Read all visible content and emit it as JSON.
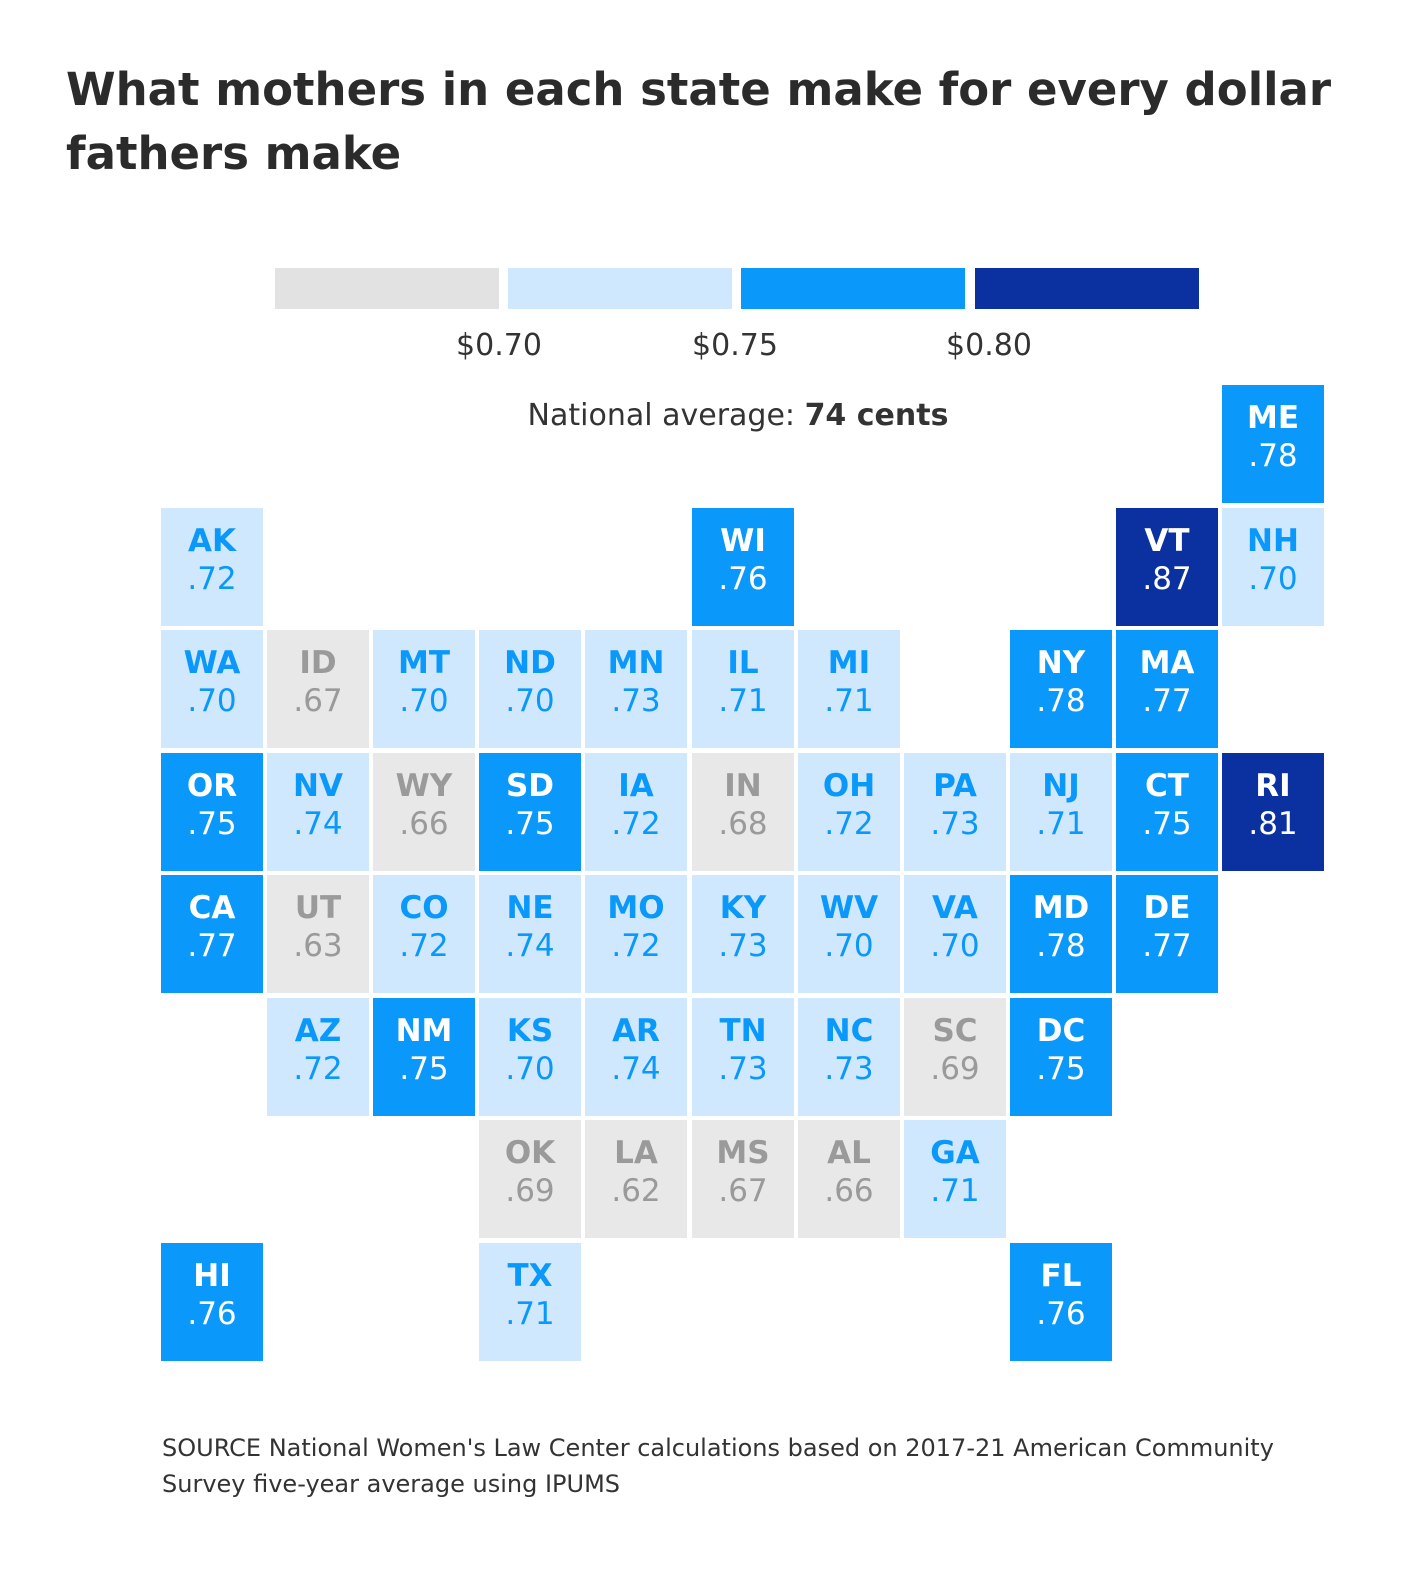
{
  "title": "What mothers in each state make for every dollar fathers make",
  "legend": {
    "colors": [
      "#e2e2e2",
      "#cfe8fd",
      "#0a98fb",
      "#0b30a0"
    ],
    "ticks": [
      "$0.70",
      "$0.75",
      "$0.80"
    ]
  },
  "national_average": {
    "label": "National average:",
    "value": "74 cents"
  },
  "colors": {
    "bin0_bg": "#e8e8e8",
    "bin0_text": "#9a9a9a",
    "bin1_bg": "#cfe8fd",
    "bin1_text": "#0a98fb",
    "bin2_bg": "#0a98fb",
    "bin2_text": "#ffffff",
    "bin3_bg": "#0b30a0",
    "bin3_text": "#ffffff"
  },
  "states": [
    {
      "abbr": "ME",
      "value": ".78",
      "row": 0,
      "col": 10,
      "bin": 2
    },
    {
      "abbr": "AK",
      "value": ".72",
      "row": 1,
      "col": 0,
      "bin": 1
    },
    {
      "abbr": "WI",
      "value": ".76",
      "row": 1,
      "col": 5,
      "bin": 2
    },
    {
      "abbr": "VT",
      "value": ".87",
      "row": 1,
      "col": 9,
      "bin": 3
    },
    {
      "abbr": "NH",
      "value": ".70",
      "row": 1,
      "col": 10,
      "bin": 1
    },
    {
      "abbr": "WA",
      "value": ".70",
      "row": 2,
      "col": 0,
      "bin": 1
    },
    {
      "abbr": "ID",
      "value": ".67",
      "row": 2,
      "col": 1,
      "bin": 0
    },
    {
      "abbr": "MT",
      "value": ".70",
      "row": 2,
      "col": 2,
      "bin": 1
    },
    {
      "abbr": "ND",
      "value": ".70",
      "row": 2,
      "col": 3,
      "bin": 1
    },
    {
      "abbr": "MN",
      "value": ".73",
      "row": 2,
      "col": 4,
      "bin": 1
    },
    {
      "abbr": "IL",
      "value": ".71",
      "row": 2,
      "col": 5,
      "bin": 1
    },
    {
      "abbr": "MI",
      "value": ".71",
      "row": 2,
      "col": 6,
      "bin": 1
    },
    {
      "abbr": "NY",
      "value": ".78",
      "row": 2,
      "col": 8,
      "bin": 2
    },
    {
      "abbr": "MA",
      "value": ".77",
      "row": 2,
      "col": 9,
      "bin": 2
    },
    {
      "abbr": "OR",
      "value": ".75",
      "row": 3,
      "col": 0,
      "bin": 2
    },
    {
      "abbr": "NV",
      "value": ".74",
      "row": 3,
      "col": 1,
      "bin": 1
    },
    {
      "abbr": "WY",
      "value": ".66",
      "row": 3,
      "col": 2,
      "bin": 0
    },
    {
      "abbr": "SD",
      "value": ".75",
      "row": 3,
      "col": 3,
      "bin": 2
    },
    {
      "abbr": "IA",
      "value": ".72",
      "row": 3,
      "col": 4,
      "bin": 1
    },
    {
      "abbr": "IN",
      "value": ".68",
      "row": 3,
      "col": 5,
      "bin": 0
    },
    {
      "abbr": "OH",
      "value": ".72",
      "row": 3,
      "col": 6,
      "bin": 1
    },
    {
      "abbr": "PA",
      "value": ".73",
      "row": 3,
      "col": 7,
      "bin": 1
    },
    {
      "abbr": "NJ",
      "value": ".71",
      "row": 3,
      "col": 8,
      "bin": 1
    },
    {
      "abbr": "CT",
      "value": ".75",
      "row": 3,
      "col": 9,
      "bin": 2
    },
    {
      "abbr": "RI",
      "value": ".81",
      "row": 3,
      "col": 10,
      "bin": 3
    },
    {
      "abbr": "CA",
      "value": ".77",
      "row": 4,
      "col": 0,
      "bin": 2
    },
    {
      "abbr": "UT",
      "value": ".63",
      "row": 4,
      "col": 1,
      "bin": 0
    },
    {
      "abbr": "CO",
      "value": ".72",
      "row": 4,
      "col": 2,
      "bin": 1
    },
    {
      "abbr": "NE",
      "value": ".74",
      "row": 4,
      "col": 3,
      "bin": 1
    },
    {
      "abbr": "MO",
      "value": ".72",
      "row": 4,
      "col": 4,
      "bin": 1
    },
    {
      "abbr": "KY",
      "value": ".73",
      "row": 4,
      "col": 5,
      "bin": 1
    },
    {
      "abbr": "WV",
      "value": ".70",
      "row": 4,
      "col": 6,
      "bin": 1
    },
    {
      "abbr": "VA",
      "value": ".70",
      "row": 4,
      "col": 7,
      "bin": 1
    },
    {
      "abbr": "MD",
      "value": ".78",
      "row": 4,
      "col": 8,
      "bin": 2
    },
    {
      "abbr": "DE",
      "value": ".77",
      "row": 4,
      "col": 9,
      "bin": 2
    },
    {
      "abbr": "AZ",
      "value": ".72",
      "row": 5,
      "col": 1,
      "bin": 1
    },
    {
      "abbr": "NM",
      "value": ".75",
      "row": 5,
      "col": 2,
      "bin": 2
    },
    {
      "abbr": "KS",
      "value": ".70",
      "row": 5,
      "col": 3,
      "bin": 1
    },
    {
      "abbr": "AR",
      "value": ".74",
      "row": 5,
      "col": 4,
      "bin": 1
    },
    {
      "abbr": "TN",
      "value": ".73",
      "row": 5,
      "col": 5,
      "bin": 1
    },
    {
      "abbr": "NC",
      "value": ".73",
      "row": 5,
      "col": 6,
      "bin": 1
    },
    {
      "abbr": "SC",
      "value": ".69",
      "row": 5,
      "col": 7,
      "bin": 0
    },
    {
      "abbr": "DC",
      "value": ".75",
      "row": 5,
      "col": 8,
      "bin": 2
    },
    {
      "abbr": "OK",
      "value": ".69",
      "row": 6,
      "col": 3,
      "bin": 0
    },
    {
      "abbr": "LA",
      "value": ".62",
      "row": 6,
      "col": 4,
      "bin": 0
    },
    {
      "abbr": "MS",
      "value": ".67",
      "row": 6,
      "col": 5,
      "bin": 0
    },
    {
      "abbr": "AL",
      "value": ".66",
      "row": 6,
      "col": 6,
      "bin": 0
    },
    {
      "abbr": "GA",
      "value": ".71",
      "row": 6,
      "col": 7,
      "bin": 1
    },
    {
      "abbr": "HI",
      "value": ".76",
      "row": 7,
      "col": 0,
      "bin": 2
    },
    {
      "abbr": "TX",
      "value": ".71",
      "row": 7,
      "col": 3,
      "bin": 1
    },
    {
      "abbr": "FL",
      "value": ".76",
      "row": 7,
      "col": 8,
      "bin": 2
    }
  ],
  "source": "SOURCE National Women's Law Center calculations based on 2017-21 American Community Survey five-year average using IPUMS"
}
